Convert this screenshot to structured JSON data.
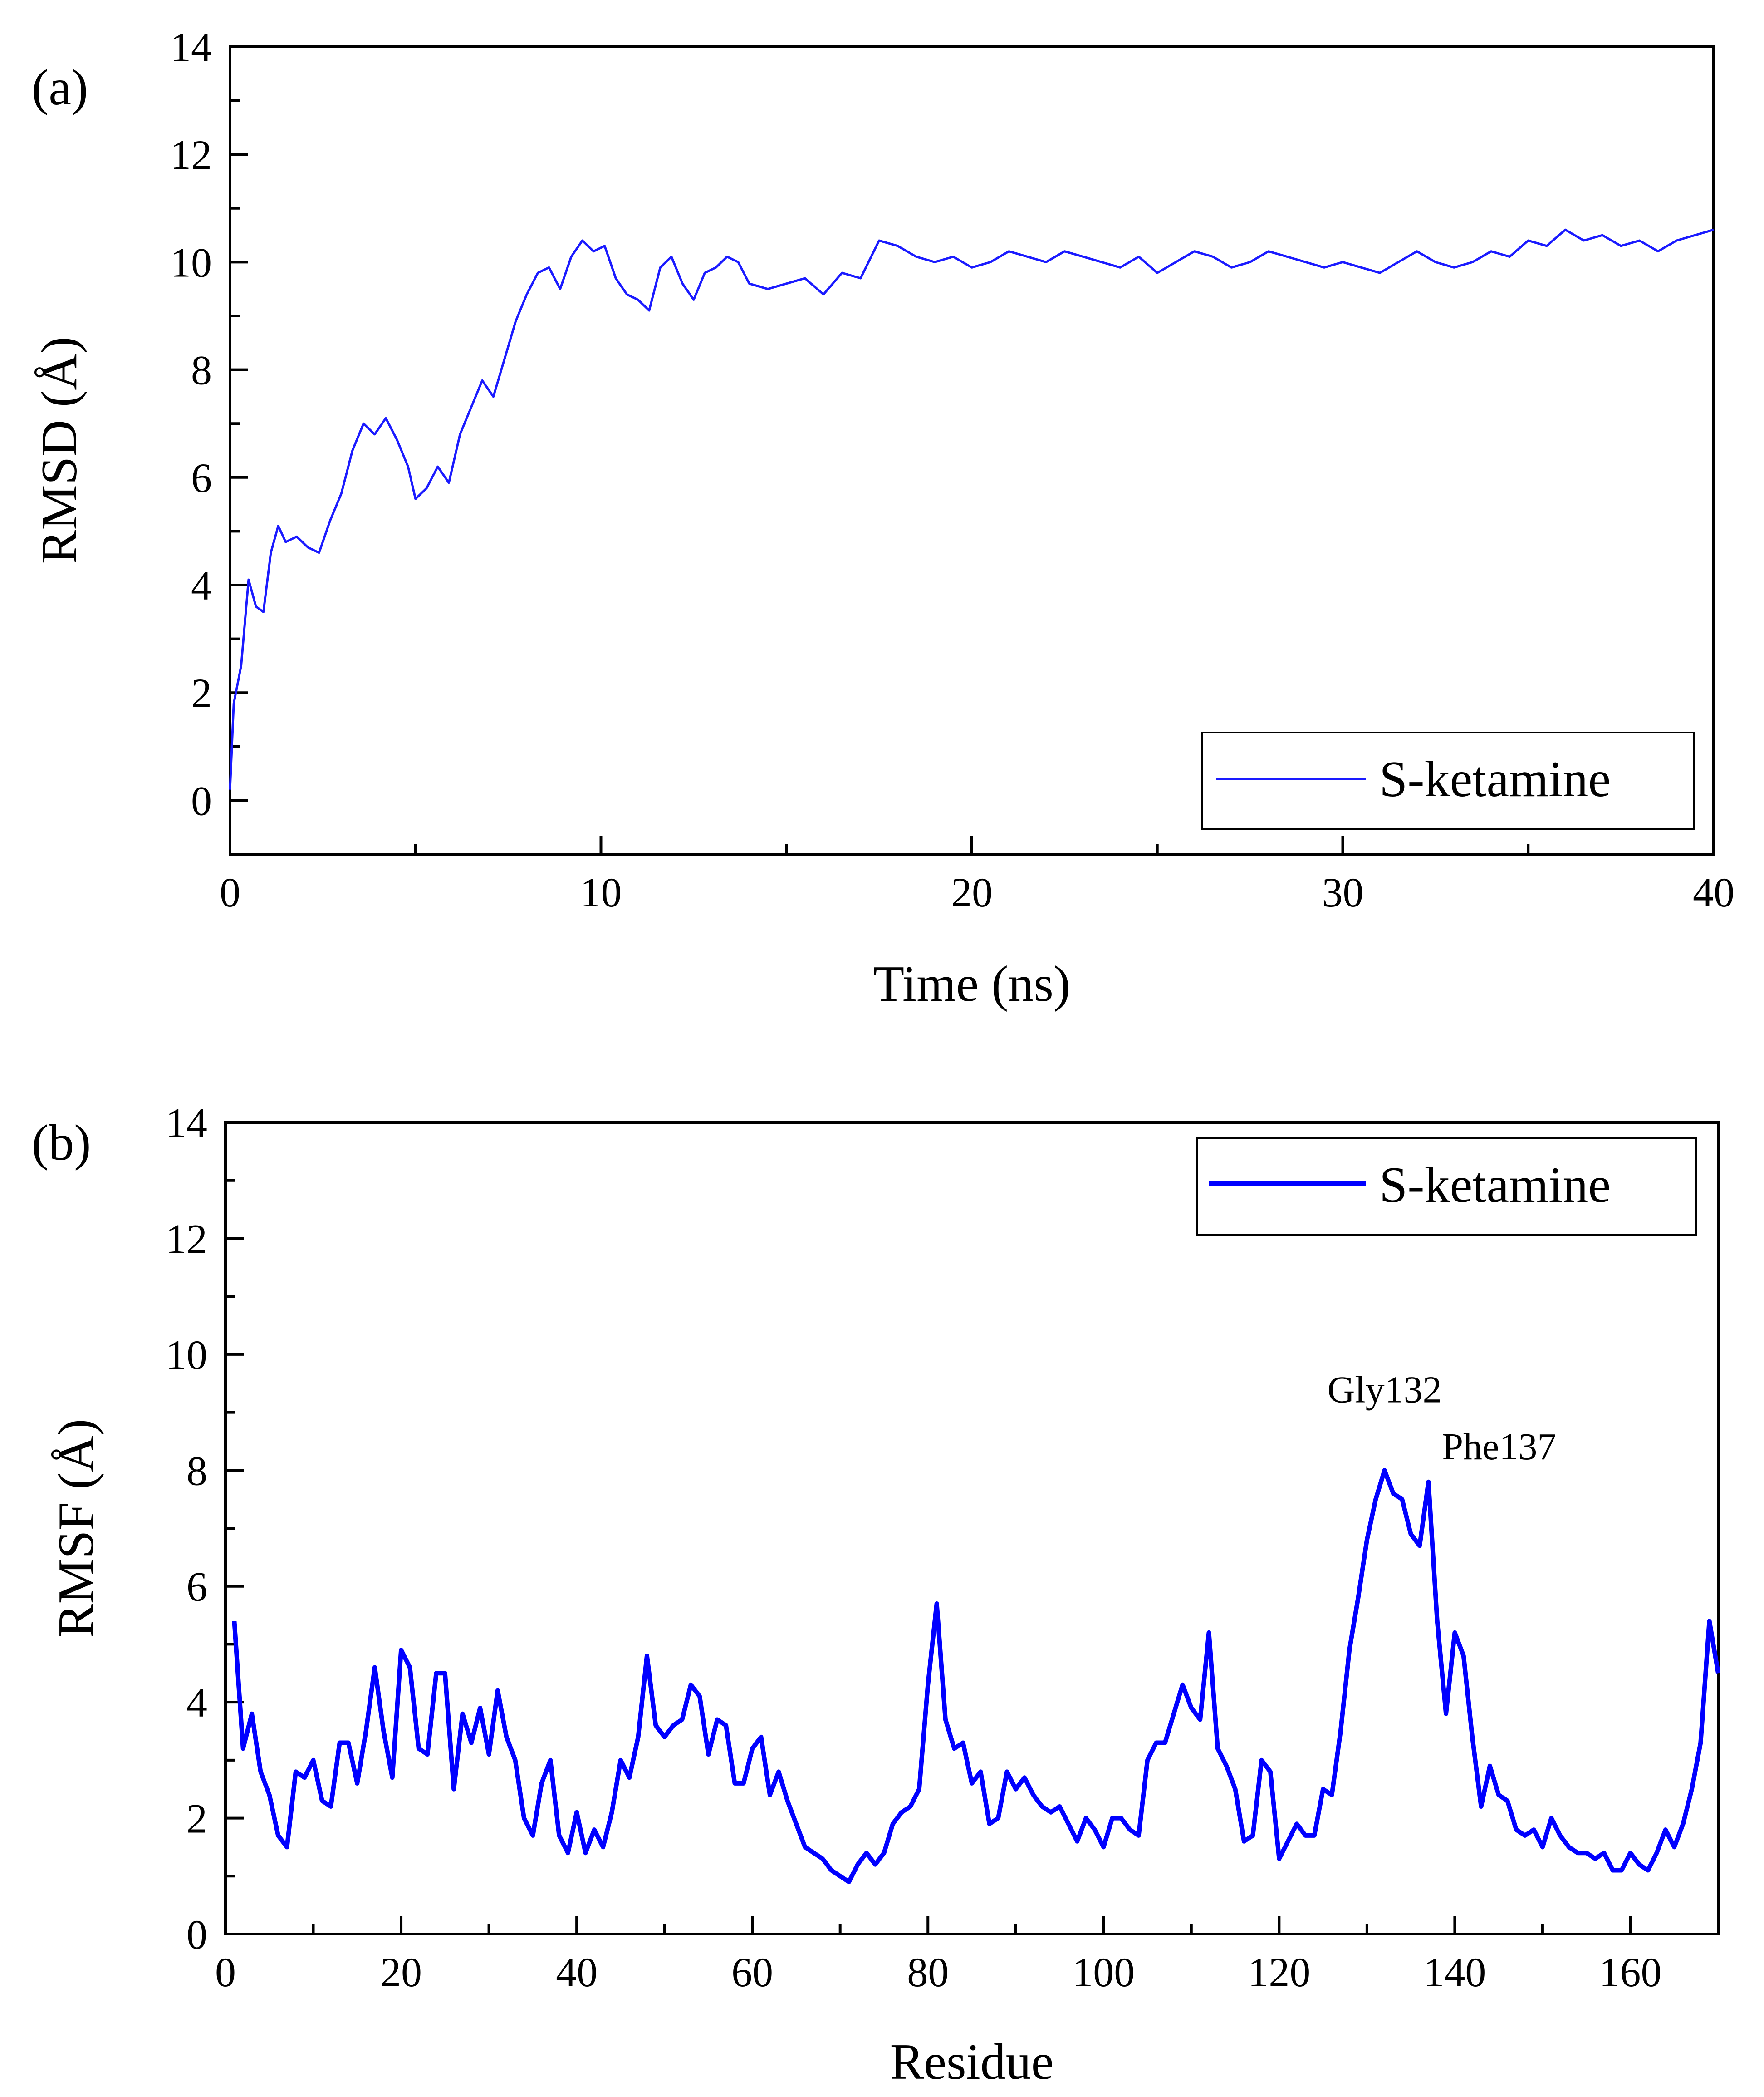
{
  "chart_data": [
    {
      "panel_label": "(a)",
      "type": "line",
      "xlabel": "Time (ns)",
      "ylabel": "RMSD (Å)",
      "xlim": [
        0,
        40
      ],
      "ylim": [
        -1,
        14
      ],
      "xticks": [
        0,
        10,
        20,
        30,
        40
      ],
      "yticks": [
        0,
        2,
        4,
        6,
        8,
        10,
        12,
        14
      ],
      "xtick_labels": [
        "0",
        "10",
        "20",
        "30",
        "40"
      ],
      "ytick_labels": [
        "0",
        "2",
        "4",
        "6",
        "8",
        "10",
        "12",
        "14"
      ],
      "legend_position": "bottom-right",
      "series": [
        {
          "name": "S-ketamine",
          "color": "#1a1aff",
          "x": [
            0,
            0.1,
            0.3,
            0.5,
            0.7,
            0.9,
            1.1,
            1.3,
            1.5,
            1.8,
            2.1,
            2.4,
            2.7,
            3.0,
            3.3,
            3.6,
            3.9,
            4.2,
            4.5,
            4.8,
            5.0,
            5.3,
            5.6,
            5.9,
            6.2,
            6.5,
            6.8,
            7.1,
            7.4,
            7.7,
            8.0,
            8.3,
            8.6,
            8.9,
            9.2,
            9.5,
            9.8,
            10.1,
            10.4,
            10.7,
            11.0,
            11.3,
            11.6,
            11.9,
            12.2,
            12.5,
            12.8,
            13.1,
            13.4,
            13.7,
            14.0,
            14.5,
            15.0,
            15.5,
            16.0,
            16.5,
            17.0,
            17.5,
            18.0,
            18.5,
            19.0,
            19.5,
            20.0,
            20.5,
            21.0,
            21.5,
            22.0,
            22.5,
            23.0,
            23.5,
            24.0,
            24.5,
            25.0,
            25.5,
            26.0,
            26.5,
            27.0,
            27.5,
            28.0,
            28.5,
            29.0,
            29.5,
            30.0,
            30.5,
            31.0,
            31.5,
            32.0,
            32.5,
            33.0,
            33.5,
            34.0,
            34.5,
            35.0,
            35.5,
            36.0,
            36.5,
            37.0,
            37.5,
            38.0,
            38.5,
            39.0,
            39.5,
            40.0
          ],
          "values": [
            0.2,
            1.8,
            2.5,
            4.1,
            3.6,
            3.5,
            4.6,
            5.1,
            4.8,
            4.9,
            4.7,
            4.6,
            5.2,
            5.7,
            6.5,
            7.0,
            6.8,
            7.1,
            6.7,
            6.2,
            5.6,
            5.8,
            6.2,
            5.9,
            6.8,
            7.3,
            7.8,
            7.5,
            8.2,
            8.9,
            9.4,
            9.8,
            9.9,
            9.5,
            10.1,
            10.4,
            10.2,
            10.3,
            9.7,
            9.4,
            9.3,
            9.1,
            9.9,
            10.1,
            9.6,
            9.3,
            9.8,
            9.9,
            10.1,
            10.0,
            9.6,
            9.5,
            9.6,
            9.7,
            9.4,
            9.8,
            9.7,
            10.4,
            10.3,
            10.1,
            10.0,
            10.1,
            9.9,
            10.0,
            10.2,
            10.1,
            10.0,
            10.2,
            10.1,
            10.0,
            9.9,
            10.1,
            9.8,
            10.0,
            10.2,
            10.1,
            9.9,
            10.0,
            10.2,
            10.1,
            10.0,
            9.9,
            10.0,
            9.9,
            9.8,
            10.0,
            10.2,
            10.0,
            9.9,
            10.0,
            10.2,
            10.1,
            10.4,
            10.3,
            10.6,
            10.4,
            10.5,
            10.3,
            10.4,
            10.2,
            10.4,
            10.5,
            10.6
          ]
        }
      ]
    },
    {
      "panel_label": "(b)",
      "type": "line",
      "xlabel": "Residue",
      "ylabel": "RMSF (Å)",
      "xlim": [
        0,
        170
      ],
      "ylim": [
        0,
        14
      ],
      "xticks": [
        0,
        20,
        40,
        60,
        80,
        100,
        120,
        140,
        160
      ],
      "yticks": [
        0,
        2,
        4,
        6,
        8,
        10,
        12,
        14
      ],
      "xtick_labels": [
        "0",
        "20",
        "40",
        "60",
        "80",
        "100",
        "120",
        "140",
        "160"
      ],
      "ytick_labels": [
        "0",
        "2",
        "4",
        "6",
        "8",
        "10",
        "12",
        "14"
      ],
      "legend_position": "top-right",
      "annotations": [
        {
          "text": "Gly132",
          "x": 132,
          "y": 8.0,
          "color": "#ff0000"
        },
        {
          "text": "Phe137",
          "x": 137,
          "y": 7.8,
          "color": "#ff0000"
        }
      ],
      "series": [
        {
          "name": "S-ketamine",
          "color": "#0000ff",
          "x": [
            1,
            2,
            3,
            4,
            5,
            6,
            7,
            8,
            9,
            10,
            11,
            12,
            13,
            14,
            15,
            16,
            17,
            18,
            19,
            20,
            21,
            22,
            23,
            24,
            25,
            26,
            27,
            28,
            29,
            30,
            31,
            32,
            33,
            34,
            35,
            36,
            37,
            38,
            39,
            40,
            41,
            42,
            43,
            44,
            45,
            46,
            47,
            48,
            49,
            50,
            51,
            52,
            53,
            54,
            55,
            56,
            57,
            58,
            59,
            60,
            61,
            62,
            63,
            64,
            65,
            66,
            67,
            68,
            69,
            70,
            71,
            72,
            73,
            74,
            75,
            76,
            77,
            78,
            79,
            80,
            81,
            82,
            83,
            84,
            85,
            86,
            87,
            88,
            89,
            90,
            91,
            92,
            93,
            94,
            95,
            96,
            97,
            98,
            99,
            100,
            101,
            102,
            103,
            104,
            105,
            106,
            107,
            108,
            109,
            110,
            111,
            112,
            113,
            114,
            115,
            116,
            117,
            118,
            119,
            120,
            121,
            122,
            123,
            124,
            125,
            126,
            127,
            128,
            129,
            130,
            131,
            132,
            133,
            134,
            135,
            136,
            137,
            138,
            139,
            140,
            141,
            142,
            143,
            144,
            145,
            146,
            147,
            148,
            149,
            150,
            151,
            152,
            153,
            154,
            155,
            156,
            157,
            158,
            159,
            160,
            161,
            162,
            163,
            164,
            165,
            166,
            167,
            168,
            169,
            170
          ],
          "values": [
            5.4,
            3.2,
            3.8,
            2.8,
            2.4,
            1.7,
            1.5,
            2.8,
            2.7,
            3.0,
            2.3,
            2.2,
            3.3,
            3.3,
            2.6,
            3.5,
            4.6,
            3.5,
            2.7,
            4.9,
            4.6,
            3.2,
            3.1,
            4.5,
            4.5,
            2.5,
            3.8,
            3.3,
            3.9,
            3.1,
            4.2,
            3.4,
            3.0,
            2.0,
            1.7,
            2.6,
            3.0,
            1.7,
            1.4,
            2.1,
            1.4,
            1.8,
            1.5,
            2.1,
            3.0,
            2.7,
            3.4,
            4.8,
            3.6,
            3.4,
            3.6,
            3.7,
            4.3,
            4.1,
            3.1,
            3.7,
            3.6,
            2.6,
            2.6,
            3.2,
            3.4,
            2.4,
            2.8,
            2.3,
            1.9,
            1.5,
            1.4,
            1.3,
            1.1,
            1.0,
            0.9,
            1.2,
            1.4,
            1.2,
            1.4,
            1.9,
            2.1,
            2.2,
            2.5,
            4.3,
            5.7,
            3.7,
            3.2,
            3.3,
            2.6,
            2.8,
            1.9,
            2.0,
            2.8,
            2.5,
            2.7,
            2.4,
            2.2,
            2.1,
            2.2,
            1.9,
            1.6,
            2.0,
            1.8,
            1.5,
            2.0,
            2.0,
            1.8,
            1.7,
            3.0,
            3.3,
            3.3,
            3.8,
            4.3,
            3.9,
            3.7,
            5.2,
            3.2,
            2.9,
            2.5,
            1.6,
            1.7,
            3.0,
            2.8,
            1.3,
            1.6,
            1.9,
            1.7,
            1.7,
            2.5,
            2.4,
            3.5,
            4.9,
            5.8,
            6.8,
            7.5,
            8.0,
            7.6,
            7.5,
            6.9,
            6.7,
            7.8,
            5.4,
            3.8,
            5.2,
            4.8,
            3.4,
            2.2,
            2.9,
            2.4,
            2.3,
            1.8,
            1.7,
            1.8,
            1.5,
            2.0,
            1.7,
            1.5,
            1.4,
            1.4,
            1.3,
            1.4,
            1.1,
            1.1,
            1.4,
            1.2,
            1.1,
            1.4,
            1.8,
            1.5,
            1.9,
            2.5,
            3.3,
            5.4,
            4.5
          ]
        }
      ]
    }
  ]
}
